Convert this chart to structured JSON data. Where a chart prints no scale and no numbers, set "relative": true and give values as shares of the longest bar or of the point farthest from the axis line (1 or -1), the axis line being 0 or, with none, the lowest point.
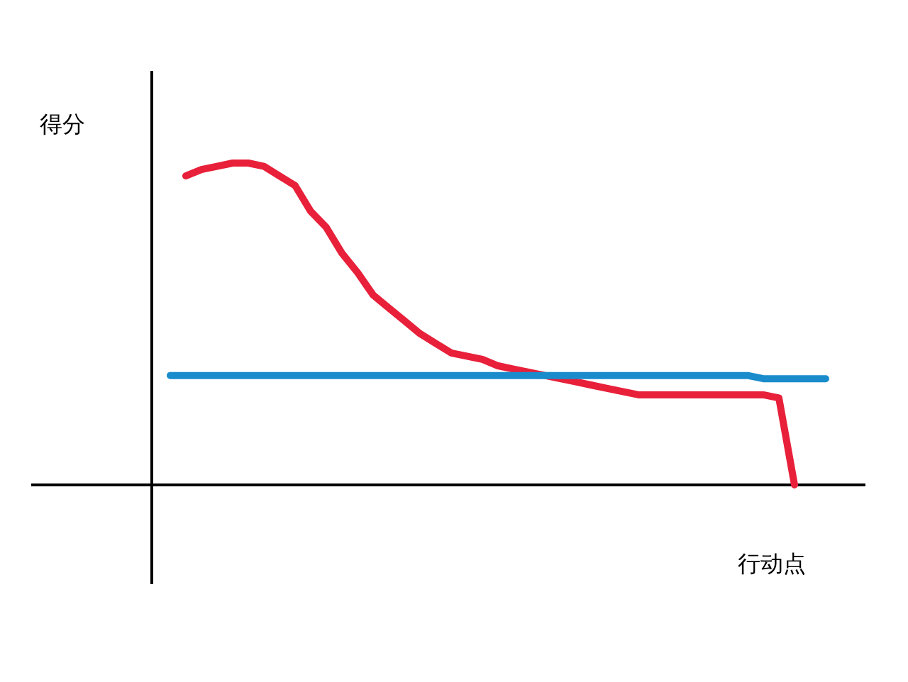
{
  "chart_data": {
    "type": "line",
    "relative": true,
    "ylabel": "得分",
    "xlabel": "行动点",
    "categories": [
      null,
      null,
      null,
      null,
      null,
      null,
      null,
      null,
      null,
      null,
      null,
      null,
      null,
      null,
      null,
      null,
      null,
      null,
      null,
      null,
      null,
      null,
      null,
      null,
      null,
      null,
      null,
      null,
      null,
      null,
      null,
      null,
      null,
      null,
      null,
      null,
      null,
      null,
      null,
      null,
      null,
      null,
      null
    ],
    "series": [
      {
        "color": "#e8203a",
        "values": [
          null,
          0.96,
          0.98,
          0.99,
          1,
          1,
          0.99,
          0.96,
          0.93,
          0.85,
          0.8,
          0.72,
          0.66,
          0.59,
          0.55,
          0.51,
          0.47,
          0.44,
          0.41,
          0.4,
          0.39,
          0.37,
          0.36,
          0.35,
          0.34,
          0.33,
          0.32,
          0.31,
          0.3,
          0.29,
          0.28,
          0.28,
          0.28,
          0.28,
          0.28,
          0.28,
          0.28,
          0.28,
          0.28,
          0.27,
          0,
          null,
          null
        ]
      },
      {
        "color": "#1a8ccc",
        "values": [
          0.34,
          0.34,
          0.34,
          0.34,
          0.34,
          0.34,
          0.34,
          0.34,
          0.34,
          0.34,
          0.34,
          0.34,
          0.34,
          0.34,
          0.34,
          0.34,
          0.34,
          0.34,
          0.34,
          0.34,
          0.34,
          0.34,
          0.34,
          0.34,
          0.34,
          0.34,
          0.34,
          0.34,
          0.34,
          0.34,
          0.34,
          0.34,
          0.34,
          0.34,
          0.34,
          0.34,
          0.34,
          0.34,
          0.33,
          0.33,
          0.33,
          0.33,
          0.33
        ]
      }
    ]
  }
}
